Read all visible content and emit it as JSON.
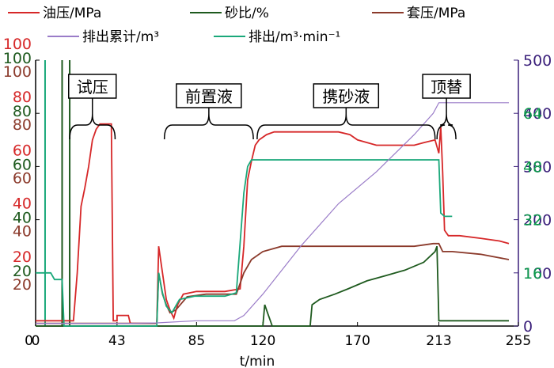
{
  "chart_data": {
    "type": "line",
    "xlabel": "t/min",
    "x_ticks": [
      0,
      43,
      85,
      120,
      170,
      213,
      255
    ],
    "xlim": [
      0,
      255
    ],
    "left_axes": [
      {
        "series": "油压/MPa",
        "color": "#d62728",
        "ticks": [
          "20",
          "40",
          "60",
          "80",
          "100"
        ]
      },
      {
        "series": "砂比/%",
        "color": "#1e5a1e",
        "ticks": [
          "20",
          "40",
          "60",
          "80",
          "100"
        ]
      },
      {
        "series": "套压/MPa",
        "color": "#8b3a2b",
        "ticks": [
          "20",
          "40",
          "60",
          "80",
          "100"
        ]
      }
    ],
    "left_zero_label": "0",
    "right_axes": [
      {
        "series": "排出累计/m³",
        "color": "#3a1f7a",
        "ticks": [
          "0",
          "100",
          "200",
          "300",
          "400",
          "500"
        ],
        "ylim": [
          0,
          500
        ]
      },
      {
        "series": "排出/m³·min⁻¹",
        "color": "#0a9a4a",
        "ticks": [
          "16",
          "32",
          "48",
          "64"
        ],
        "ylim": [
          0,
          80
        ]
      }
    ],
    "legend": [
      {
        "label": "油压/MPa",
        "color": "#d62728"
      },
      {
        "label": "砂比/%",
        "color": "#1e5a1e"
      },
      {
        "label": "套压/MPa",
        "color": "#8b3a2b"
      },
      {
        "label": "排出累计/m³",
        "color": "#9a7cc8"
      },
      {
        "label": "排出/m³·min⁻¹",
        "color": "#1aa87a"
      }
    ],
    "annotations": [
      {
        "text": "试压",
        "x_start": 18,
        "x_end": 42
      },
      {
        "text": "前置液",
        "x_start": 68,
        "x_end": 115
      },
      {
        "text": "携砂液",
        "x_start": 117,
        "x_end": 211
      },
      {
        "text": "顶替",
        "x_start": 212,
        "x_end": 222
      }
    ],
    "series": [
      {
        "name": "油压/MPa",
        "color": "#d62728",
        "axis": "left",
        "ylim": [
          0,
          100
        ],
        "points": [
          [
            0,
            2
          ],
          [
            20,
            2
          ],
          [
            22,
            20
          ],
          [
            24,
            45
          ],
          [
            26,
            52
          ],
          [
            28,
            60
          ],
          [
            30,
            70
          ],
          [
            32,
            74
          ],
          [
            34,
            76
          ],
          [
            39,
            76
          ],
          [
            40,
            76
          ],
          [
            41,
            2
          ],
          [
            43,
            2
          ],
          [
            43,
            4
          ],
          [
            49,
            4
          ],
          [
            50,
            1
          ],
          [
            64,
            1
          ],
          [
            65,
            30
          ],
          [
            67,
            20
          ],
          [
            69,
            10
          ],
          [
            71,
            6
          ],
          [
            73,
            3
          ],
          [
            75,
            8
          ],
          [
            78,
            12
          ],
          [
            85,
            13
          ],
          [
            100,
            13
          ],
          [
            108,
            14
          ],
          [
            110,
            30
          ],
          [
            112,
            55
          ],
          [
            114,
            62
          ],
          [
            116,
            68
          ],
          [
            118,
            70
          ],
          [
            122,
            72
          ],
          [
            126,
            73
          ],
          [
            150,
            73
          ],
          [
            160,
            73
          ],
          [
            166,
            72
          ],
          [
            170,
            70
          ],
          [
            180,
            68
          ],
          [
            200,
            68
          ],
          [
            205,
            69
          ],
          [
            211,
            70
          ],
          [
            213,
            65
          ],
          [
            214,
            75
          ],
          [
            215,
            58
          ],
          [
            216,
            36
          ],
          [
            218,
            34
          ],
          [
            224,
            34
          ],
          [
            235,
            33
          ],
          [
            245,
            32
          ],
          [
            250,
            31
          ]
        ]
      },
      {
        "name": "套压/MPa",
        "color": "#8b3a2b",
        "axis": "left",
        "ylim": [
          0,
          100
        ],
        "points": [
          [
            0,
            1
          ],
          [
            64,
            1
          ],
          [
            65,
            20
          ],
          [
            67,
            12
          ],
          [
            69,
            8
          ],
          [
            71,
            5
          ],
          [
            74,
            6
          ],
          [
            80,
            11
          ],
          [
            90,
            12
          ],
          [
            106,
            12
          ],
          [
            110,
            20
          ],
          [
            114,
            25
          ],
          [
            120,
            28
          ],
          [
            130,
            30
          ],
          [
            150,
            30
          ],
          [
            175,
            30
          ],
          [
            200,
            30
          ],
          [
            210,
            31
          ],
          [
            213,
            31
          ],
          [
            215,
            28
          ],
          [
            220,
            28
          ],
          [
            235,
            27
          ],
          [
            250,
            25
          ]
        ]
      },
      {
        "name": "砂比/%",
        "color": "#1e5a1e",
        "axis": "left",
        "ylim": [
          0,
          100
        ],
        "points": [
          [
            0,
            0
          ],
          [
            120,
            0
          ],
          [
            121,
            8
          ],
          [
            123,
            4
          ],
          [
            125,
            0
          ],
          [
            145,
            0
          ],
          [
            146,
            8
          ],
          [
            150,
            10
          ],
          [
            158,
            12
          ],
          [
            165,
            14
          ],
          [
            175,
            17
          ],
          [
            185,
            19
          ],
          [
            195,
            21
          ],
          [
            205,
            24
          ],
          [
            211,
            28
          ],
          [
            212,
            30
          ],
          [
            213,
            2
          ],
          [
            250,
            2
          ]
        ]
      },
      {
        "name": "排出/m³·min⁻¹",
        "color": "#1aa87a",
        "axis": "right2",
        "ylim": [
          0,
          80
        ],
        "points": [
          [
            0,
            16
          ],
          [
            8,
            16
          ],
          [
            10,
            14
          ],
          [
            14,
            14
          ],
          [
            15,
            0
          ],
          [
            64,
            0
          ],
          [
            65,
            16
          ],
          [
            67,
            10
          ],
          [
            69,
            6
          ],
          [
            72,
            4
          ],
          [
            76,
            8
          ],
          [
            84,
            9
          ],
          [
            100,
            9
          ],
          [
            106,
            10
          ],
          [
            108,
            25
          ],
          [
            110,
            40
          ],
          [
            112,
            48
          ],
          [
            114,
            50
          ],
          [
            116,
            50
          ],
          [
            140,
            50
          ],
          [
            160,
            50
          ],
          [
            190,
            50
          ],
          [
            205,
            50
          ],
          [
            213,
            50
          ],
          [
            214,
            34
          ],
          [
            216,
            33
          ],
          [
            220,
            33
          ]
        ]
      },
      {
        "name": "排出累计/m³",
        "color": "#9a7cc8",
        "axis": "right1",
        "ylim": [
          0,
          500
        ],
        "points": [
          [
            0,
            5
          ],
          [
            50,
            5
          ],
          [
            64,
            6
          ],
          [
            85,
            10
          ],
          [
            105,
            10
          ],
          [
            110,
            20
          ],
          [
            120,
            60
          ],
          [
            140,
            150
          ],
          [
            160,
            230
          ],
          [
            180,
            290
          ],
          [
            200,
            360
          ],
          [
            210,
            400
          ],
          [
            213,
            420
          ],
          [
            250,
            420
          ]
        ]
      }
    ]
  }
}
